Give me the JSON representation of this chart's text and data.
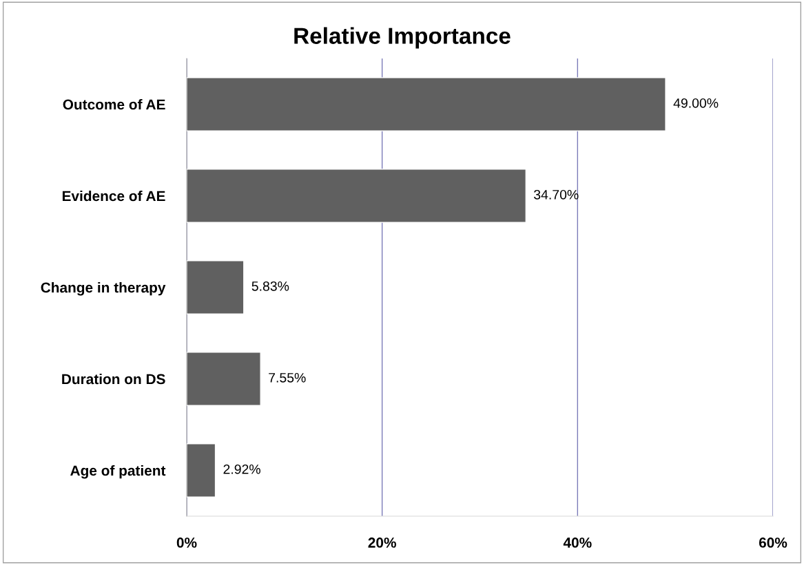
{
  "chart_data": {
    "type": "bar",
    "orientation": "horizontal",
    "title": "Relative Importance",
    "categories": [
      "Outcome of AE",
      "Evidence of AE",
      "Change in therapy",
      "Duration on DS",
      "Age of patient"
    ],
    "values": [
      49.0,
      34.7,
      5.83,
      7.55,
      2.92
    ],
    "value_labels": [
      "49.00%",
      "34.70%",
      "5.83%",
      "7.55%",
      "2.92%"
    ],
    "color": "#606060",
    "xlim": [
      0,
      60
    ],
    "xticks": [
      {
        "value": 0,
        "label": "0%"
      },
      {
        "value": 20,
        "label": "20%"
      },
      {
        "value": 40,
        "label": "40%"
      },
      {
        "value": 60,
        "label": "60%"
      }
    ],
    "grid": "x"
  }
}
